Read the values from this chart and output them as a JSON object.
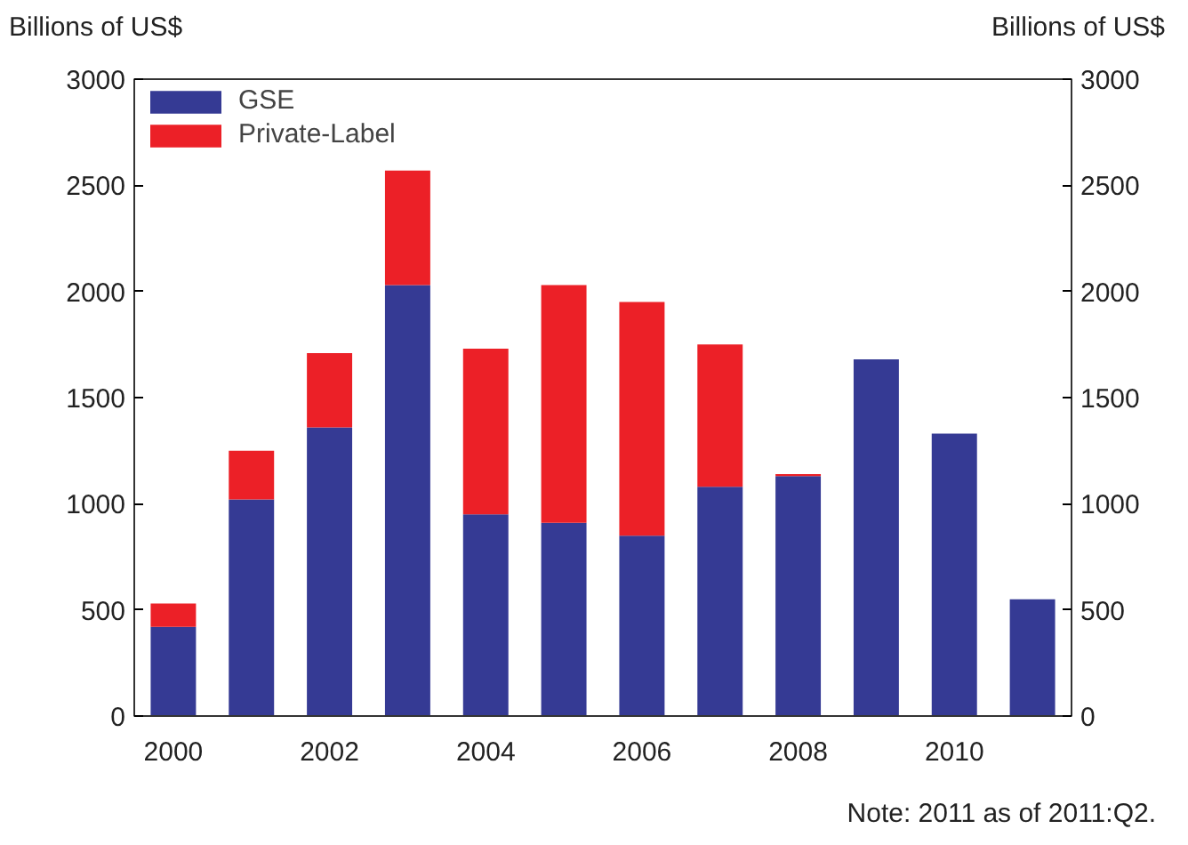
{
  "chart_data": {
    "type": "bar",
    "stacked": true,
    "categories": [
      "2000",
      null,
      "2002",
      null,
      "2004",
      null,
      "2006",
      null,
      "2008",
      null,
      "2010",
      null
    ],
    "series": [
      {
        "name": "GSE",
        "color": "#353a94",
        "values": [
          420,
          1020,
          1360,
          2030,
          950,
          910,
          850,
          1080,
          1130,
          1680,
          1330,
          550
        ]
      },
      {
        "name": "Private-Label",
        "color": "#ec2027",
        "values": [
          110,
          230,
          350,
          540,
          780,
          1120,
          1100,
          670,
          10,
          0,
          0,
          0
        ]
      }
    ],
    "ylabel": "Billions of US$",
    "y2label": "Billions of US$",
    "ylim": [
      0,
      3000
    ],
    "yticks": [
      0,
      500,
      1000,
      1500,
      2000,
      2500,
      3000
    ],
    "y2lim": [
      0,
      3000
    ],
    "y2ticks": [
      0,
      500,
      1000,
      1500,
      2000,
      2500,
      3000
    ],
    "legend": "top left",
    "grid": false,
    "annotations": [
      "Note: 2011 as of 2011:Q2."
    ]
  }
}
